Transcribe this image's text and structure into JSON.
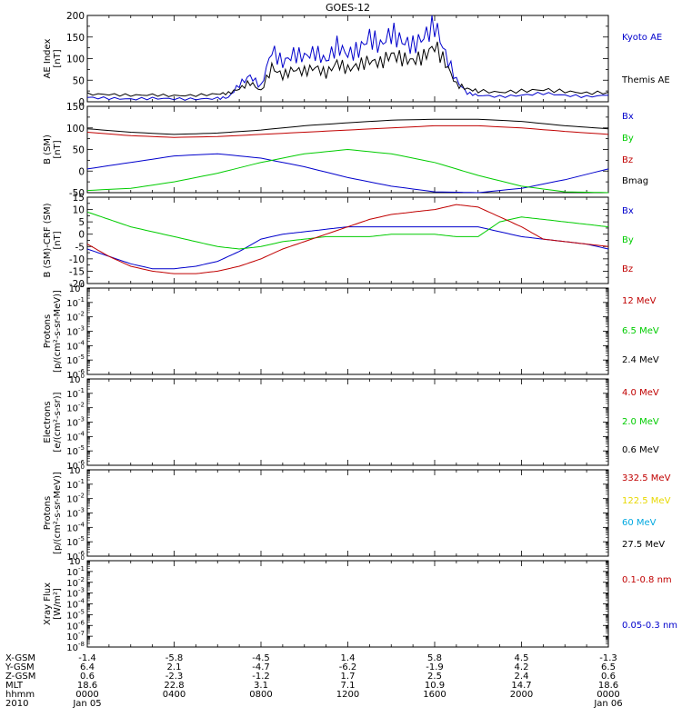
{
  "title": "GOES-12",
  "colors": {
    "black": "#000000",
    "red": "#c00000",
    "green": "#00cc00",
    "blue": "#0000cc",
    "yellow": "#e8d800",
    "cyan": "#00a8e0"
  },
  "chart_data": [
    {
      "type": "line",
      "id": "ae",
      "ylabel": [
        "AE Index",
        "[nT]"
      ],
      "ylim": [
        0,
        200
      ],
      "yticks": [
        "0",
        "50",
        "100",
        "150",
        "200"
      ],
      "x_hours": [
        0,
        1,
        2,
        3,
        4,
        5,
        6,
        6.5,
        7,
        7.5,
        8,
        8.5,
        9,
        9.5,
        10,
        10.5,
        11,
        11.5,
        12,
        12.5,
        13,
        13.5,
        14,
        14.5,
        15,
        15.5,
        16,
        16.5,
        17,
        17.5,
        18,
        19,
        20,
        21,
        22,
        23,
        24
      ],
      "series": [
        {
          "name": "Kyoto AE",
          "color": "blue",
          "values": [
            10,
            8,
            6,
            8,
            7,
            6,
            8,
            10,
            40,
            60,
            35,
            120,
            90,
            110,
            105,
            115,
            95,
            130,
            110,
            120,
            150,
            130,
            160,
            140,
            130,
            150,
            180,
            110,
            50,
            20,
            15,
            12,
            15,
            20,
            15,
            12,
            15
          ]
        },
        {
          "name": "Themis AE",
          "color": "black",
          "values": [
            18,
            17,
            15,
            16,
            14,
            15,
            18,
            20,
            30,
            45,
            25,
            80,
            60,
            75,
            70,
            80,
            65,
            90,
            75,
            85,
            95,
            90,
            110,
            100,
            95,
            105,
            130,
            90,
            40,
            30,
            25,
            22,
            25,
            28,
            24,
            20,
            22
          ]
        }
      ]
    },
    {
      "type": "line",
      "id": "b",
      "ylabel": [
        "B (SM)",
        "[nT]"
      ],
      "ylim": [
        -50,
        150
      ],
      "yticks": [
        "-50",
        "0",
        "50",
        "100",
        "150"
      ],
      "x_hours": [
        0,
        2,
        4,
        6,
        8,
        10,
        12,
        14,
        16,
        18,
        20,
        22,
        24
      ],
      "series": [
        {
          "name": "Bx",
          "color": "blue",
          "values": [
            5,
            20,
            35,
            40,
            30,
            10,
            -15,
            -35,
            -48,
            -50,
            -40,
            -20,
            5
          ]
        },
        {
          "name": "By",
          "color": "green",
          "values": [
            -45,
            -40,
            -25,
            -5,
            20,
            40,
            50,
            40,
            20,
            -10,
            -35,
            -48,
            -50
          ]
        },
        {
          "name": "Bz",
          "color": "red",
          "values": [
            90,
            82,
            78,
            80,
            85,
            90,
            95,
            100,
            105,
            105,
            100,
            92,
            85
          ]
        },
        {
          "name": "Bmag",
          "color": "black",
          "values": [
            98,
            90,
            85,
            88,
            95,
            105,
            112,
            118,
            120,
            120,
            115,
            105,
            98
          ]
        }
      ]
    },
    {
      "type": "line",
      "id": "bdiff",
      "ylabel": [
        "B (SM)-CRF (SM)",
        "[nT]"
      ],
      "ylim": [
        -20,
        15
      ],
      "yticks": [
        "-20",
        "-15",
        "-10",
        "-5",
        "0",
        "5",
        "10",
        "15"
      ],
      "x_hours": [
        0,
        1,
        2,
        3,
        4,
        5,
        6,
        7,
        8,
        9,
        10,
        11,
        12,
        13,
        14,
        15,
        16,
        17,
        18,
        19,
        20,
        21,
        22,
        23,
        24
      ],
      "series": [
        {
          "name": "Bx",
          "color": "blue",
          "values": [
            -6,
            -9,
            -12,
            -14,
            -14,
            -13,
            -11,
            -7,
            -2,
            0,
            1,
            2,
            3,
            3,
            3,
            3,
            3,
            3,
            3,
            1,
            -1,
            -2,
            -3,
            -4,
            -6
          ]
        },
        {
          "name": "By",
          "color": "green",
          "values": [
            9,
            6,
            3,
            1,
            -1,
            -3,
            -5,
            -6,
            -5,
            -3,
            -2,
            -1,
            -1,
            -1,
            0,
            0,
            0,
            -1,
            -1,
            5,
            7,
            6,
            5,
            4,
            3
          ]
        },
        {
          "name": "Bz",
          "color": "red",
          "values": [
            -4,
            -9,
            -13,
            -15,
            -16,
            -16,
            -15,
            -13,
            -10,
            -6,
            -3,
            0,
            3,
            6,
            8,
            9,
            10,
            12,
            11,
            7,
            3,
            -2,
            -3,
            -4,
            -5
          ]
        }
      ]
    },
    {
      "type": "line",
      "id": "protons1",
      "ylabel": [
        "Protons",
        "[p/(cm²-s-sr-MeV)]"
      ],
      "log": true,
      "ylim_exp": [
        -6,
        0
      ],
      "series": [
        {
          "name": "12 MeV",
          "color": "red",
          "values": []
        },
        {
          "name": "6.5 MeV",
          "color": "green",
          "values": []
        },
        {
          "name": "2.4 MeV",
          "color": "black",
          "values": []
        }
      ]
    },
    {
      "type": "line",
      "id": "electrons",
      "ylabel": [
        "Electrons",
        "[e/(cm²-s-sr)]"
      ],
      "log": true,
      "ylim_exp": [
        -6,
        0
      ],
      "series": [
        {
          "name": "4.0 MeV",
          "color": "red",
          "values": []
        },
        {
          "name": "2.0 MeV",
          "color": "green",
          "values": []
        },
        {
          "name": "0.6 MeV",
          "color": "black",
          "values": []
        }
      ]
    },
    {
      "type": "line",
      "id": "protons2",
      "ylabel": [
        "Protons",
        "[p/(cm²-s-sr-MeV)]"
      ],
      "log": true,
      "ylim_exp": [
        -6,
        0
      ],
      "series": [
        {
          "name": "332.5 MeV",
          "color": "red",
          "values": []
        },
        {
          "name": "122.5 MeV",
          "color": "yellow",
          "values": []
        },
        {
          "name": "60 MeV",
          "color": "cyan",
          "values": []
        },
        {
          "name": "27.5 MeV",
          "color": "black",
          "values": []
        }
      ]
    },
    {
      "type": "line",
      "id": "xray",
      "ylabel": [
        "Xray Flux",
        "[W/m²]"
      ],
      "log": true,
      "ylim_exp": [
        -8,
        0
      ],
      "series": [
        {
          "name": "0.1-0.8 nm",
          "color": "red",
          "values": []
        },
        {
          "name": "0.05-0.3 nm",
          "color": "blue",
          "values": []
        }
      ]
    }
  ],
  "ephemeris": {
    "labels": [
      "X-GSM",
      "Y-GSM",
      "Z-GSM",
      "MLT",
      "hhmm",
      "2010"
    ],
    "columns": [
      [
        "-1.4",
        "6.4",
        "0.6",
        "18.6",
        "0000",
        "Jan 05"
      ],
      [
        "-5.8",
        "2.1",
        "-2.3",
        "22.8",
        "0400",
        ""
      ],
      [
        "-4.5",
        "-4.7",
        "-1.2",
        "3.1",
        "0800",
        ""
      ],
      [
        "1.4",
        "-6.2",
        "1.7",
        "7.1",
        "1200",
        ""
      ],
      [
        "5.8",
        "-1.9",
        "2.5",
        "10.9",
        "1600",
        ""
      ],
      [
        "4.5",
        "4.2",
        "2.4",
        "14.7",
        "2000",
        ""
      ],
      [
        "-1.3",
        "6.5",
        "0.6",
        "18.6",
        "0000",
        "Jan 06"
      ]
    ]
  }
}
